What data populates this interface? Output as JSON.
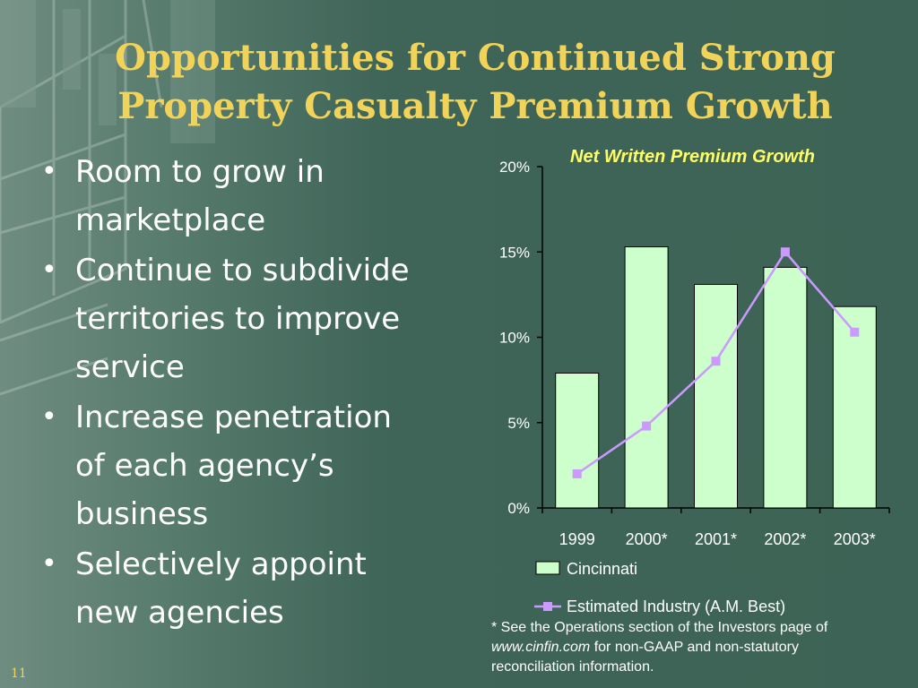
{
  "slide": {
    "title_line1": "Opportunities for Continued Strong",
    "title_line2": "Property Casualty Premium Growth",
    "number": "11"
  },
  "bullets": [
    {
      "line1": "Room to grow in",
      "line2": "marketplace"
    },
    {
      "line1": "Continue to subdivide",
      "line2": "territories to improve",
      "line3": "service"
    },
    {
      "line1": "Increase penetration",
      "line2": "of each agency’s",
      "line3": "business"
    },
    {
      "line1": "Selectively appoint",
      "line2": "new agencies"
    }
  ],
  "bullet_symbol": "•",
  "chart_data": {
    "type": "bar",
    "title": "Net Written Premium Growth",
    "categories": [
      "1999",
      "2000*",
      "2001*",
      "2002*",
      "2003*"
    ],
    "series": [
      {
        "name": "Cincinnati",
        "type": "bar",
        "values": [
          7.9,
          15.3,
          13.1,
          14.1,
          11.8
        ],
        "color": "#ccffcc"
      },
      {
        "name": "Estimated Industry (A.M. Best)",
        "type": "line",
        "values": [
          2.0,
          4.8,
          8.6,
          15.0,
          10.3
        ],
        "color": "#cc99ff"
      }
    ],
    "ylim": [
      0,
      20
    ],
    "yticks": [
      "0%",
      "5%",
      "10%",
      "15%",
      "20%"
    ],
    "ytick_values": [
      0,
      5,
      10,
      15,
      20
    ],
    "grid": false,
    "legend": "bottom"
  },
  "footnote": {
    "line1": "* See the Operations section of the Investors page of",
    "url": "www.cinfin.com",
    "line2_rest": " for non-GAAP and non-statutory",
    "line3": "reconciliation information."
  },
  "colors": {
    "title": "#f2d35a",
    "chart_title": "#ffff66",
    "background": "#3f6558",
    "bar_fill": "#ccffcc",
    "line": "#cc99ff"
  }
}
